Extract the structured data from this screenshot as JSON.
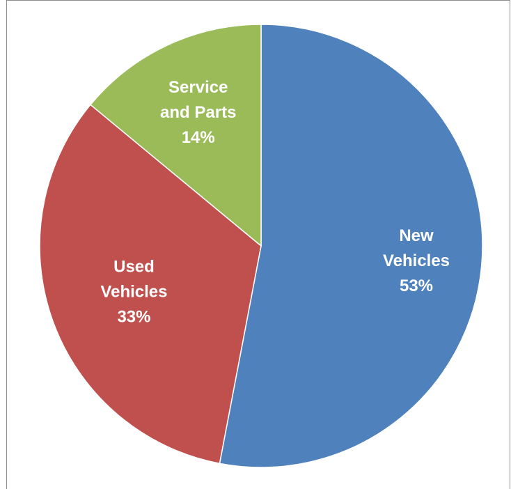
{
  "chart_data": {
    "type": "pie",
    "title": "",
    "start_angle_deg": 0,
    "direction": "clockwise",
    "slices": [
      {
        "name": "New Vehicles",
        "label_lines": [
          "New",
          "Vehicles"
        ],
        "pct_label": "53%",
        "value": 53,
        "color": "#4f81bd"
      },
      {
        "name": "Used Vehicles",
        "label_lines": [
          "Used",
          "Vehicles"
        ],
        "pct_label": "33%",
        "value": 33,
        "color": "#c0504d"
      },
      {
        "name": "Service and Parts",
        "label_lines": [
          "Service",
          "and Parts"
        ],
        "pct_label": "14%",
        "value": 14,
        "color": "#9bbb59"
      }
    ]
  }
}
